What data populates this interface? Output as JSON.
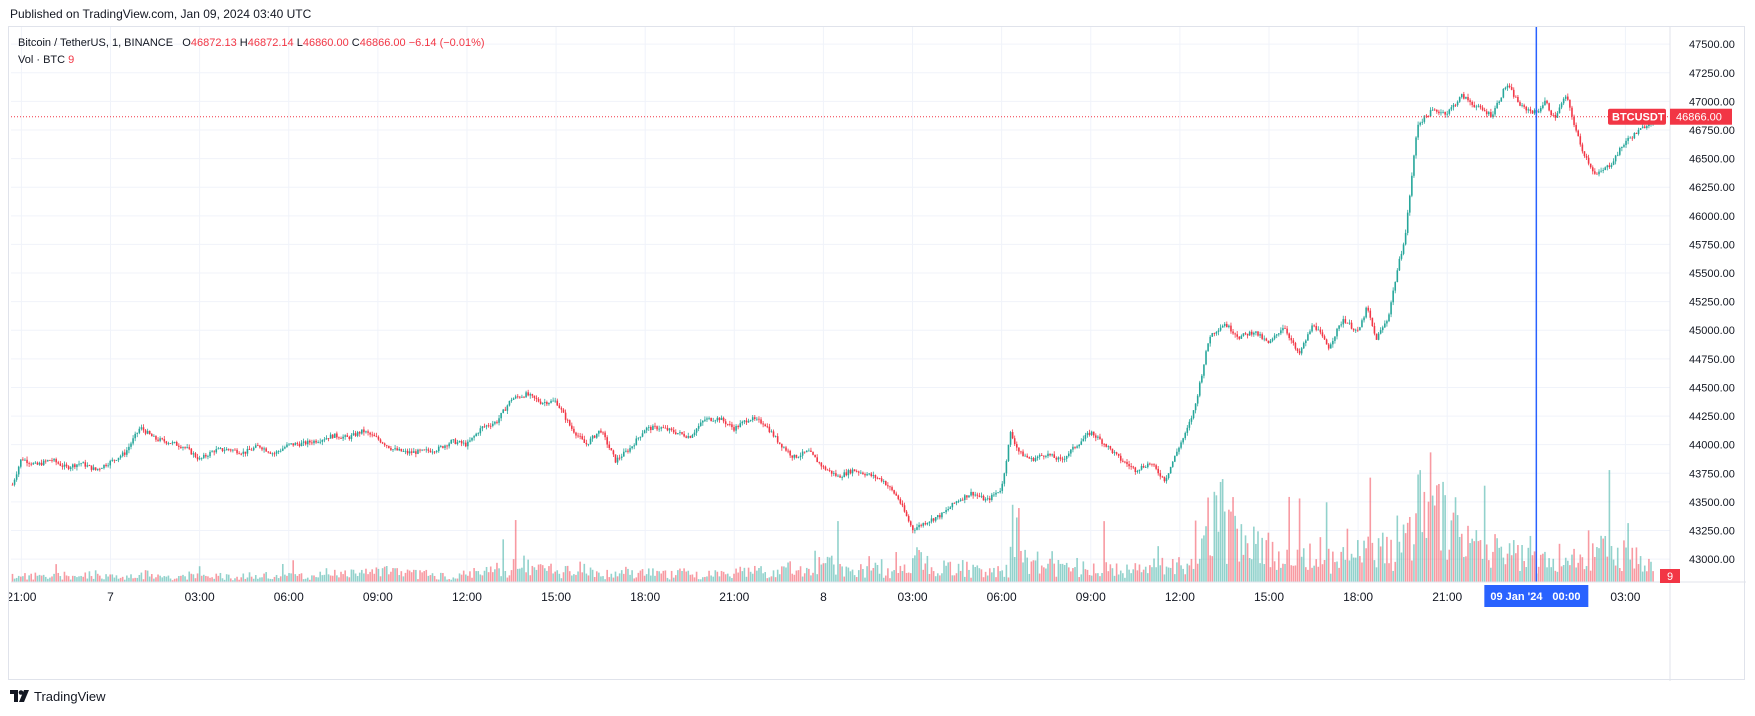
{
  "header": {
    "published": "Published on TradingView.com, Jan 09, 2024 03:40 UTC"
  },
  "legend": {
    "symbol": "Bitcoin / TetherUS, 1, BINANCE",
    "o_label": "O",
    "o_value": "46872.13",
    "h_label": "H",
    "h_value": "46872.14",
    "l_label": "L",
    "l_value": "46860.00",
    "c_label": "C",
    "c_value": "46866.00",
    "change": "−6.14 (−0.01%)",
    "volume_label": "Vol · BTC",
    "volume_value": "9"
  },
  "colors": {
    "up": "#26a69a",
    "down": "#f23645",
    "crosshair": "#2962ff",
    "grid": "#f0f3fa"
  },
  "crosshair": {
    "time_label": "09 Jan '24",
    "time_value": "00:00"
  },
  "price_tag": {
    "symbol": "BTCUSDT",
    "price": "46866.00"
  },
  "volume_tag": "9",
  "footer": {
    "brand": "TradingView",
    "logo_icon": "tradingview-logo-icon"
  },
  "chart_data": {
    "type": "line",
    "title": "Bitcoin / TetherUS, 1, BINANCE",
    "interval": "1 minute candles",
    "y_ticks": [
      43000,
      43250,
      43500,
      43750,
      44000,
      44250,
      44500,
      44750,
      45000,
      45250,
      45500,
      45750,
      46000,
      46250,
      46500,
      46750,
      47000,
      47250,
      47500
    ],
    "y_tick_labels": [
      "43000.00",
      "43250.00",
      "43500.00",
      "43750.00",
      "44000.00",
      "44250.00",
      "44500.00",
      "44750.00",
      "45000.00",
      "45250.00",
      "45500.00",
      "45750.00",
      "46000.00",
      "46250.00",
      "46500.00",
      "46750.00",
      "47000.00",
      "47250.00",
      "47500.00"
    ],
    "ylim": [
      42800,
      47650
    ],
    "x_tick_labels": [
      "21:00",
      "7",
      "03:00",
      "06:00",
      "09:00",
      "12:00",
      "15:00",
      "18:00",
      "21:00",
      "8",
      "03:00",
      "06:00",
      "09:00",
      "12:00",
      "15:00",
      "18:00",
      "21:00",
      "03:00"
    ],
    "x_tick_hours": [
      0,
      3,
      6,
      9,
      12,
      15,
      18,
      21,
      24,
      27,
      30,
      33,
      36,
      39,
      42,
      45,
      48,
      54
    ],
    "xlim_hours": [
      -0.35,
      55.5
    ],
    "series": [
      {
        "name": "BTCUSDT",
        "x_hours": [
          -0.3,
          0,
          0.5,
          1,
          1.5,
          2,
          2.5,
          3,
          3.5,
          4,
          4.5,
          5,
          5.5,
          6,
          6.5,
          7,
          7.5,
          8,
          8.5,
          9,
          9.5,
          10,
          10.5,
          11,
          11.5,
          12,
          12.5,
          13,
          13.5,
          14,
          14.5,
          15,
          15.5,
          16,
          16.5,
          17,
          17.5,
          18,
          18.5,
          19,
          19.5,
          20,
          20.5,
          21,
          21.5,
          22,
          22.5,
          23,
          23.5,
          24,
          24.5,
          25,
          25.5,
          26,
          26.5,
          27,
          27.5,
          28,
          28.5,
          29,
          29.5,
          30,
          30.5,
          31,
          31.5,
          32,
          32.5,
          33,
          33.3,
          33.6,
          34,
          34.5,
          35,
          35.5,
          36,
          36.5,
          37,
          37.5,
          38,
          38.5,
          39,
          39.2,
          39.5,
          40,
          40.5,
          41,
          41.5,
          42,
          42.5,
          43,
          43.5,
          44,
          44.5,
          45,
          45.3,
          45.6,
          46,
          46.3,
          46.6,
          47,
          47.5,
          48,
          48.5,
          49,
          49.5,
          50,
          50.5,
          51,
          51.3,
          51.6,
          52,
          52.5,
          53,
          53.5,
          54,
          54.5,
          55
        ],
        "close": [
          43650,
          43880,
          43820,
          43870,
          43800,
          43840,
          43780,
          43850,
          43930,
          44150,
          44050,
          44020,
          43980,
          43870,
          43950,
          43960,
          43930,
          43990,
          43920,
          44000,
          44010,
          44040,
          44080,
          44060,
          44120,
          44050,
          43960,
          43930,
          43940,
          43960,
          44030,
          44000,
          44150,
          44200,
          44400,
          44440,
          44370,
          44380,
          44150,
          44000,
          44130,
          43860,
          43970,
          44140,
          44150,
          44110,
          44070,
          44220,
          44230,
          44140,
          44230,
          44190,
          44020,
          43890,
          43940,
          43800,
          43720,
          43780,
          43740,
          43690,
          43540,
          43260,
          43330,
          43390,
          43510,
          43580,
          43510,
          43620,
          44100,
          43930,
          43870,
          43920,
          43860,
          43990,
          44110,
          44000,
          43870,
          43780,
          43840,
          43690,
          44000,
          44100,
          44320,
          44950,
          45060,
          44940,
          44990,
          44880,
          45040,
          44780,
          45060,
          44850,
          45100,
          44980,
          45200,
          44920,
          45100,
          45500,
          45850,
          46800,
          46920,
          46900,
          47050,
          46950,
          46880,
          47150,
          46950,
          46900,
          47000,
          46850,
          47050,
          46600,
          46350,
          46450,
          46650,
          46750,
          46866
        ],
        "high_hint": [
          47210,
          47170,
          47100
        ],
        "low_hint": [
          43180,
          43660,
          44390
        ]
      },
      {
        "name": "Vol · BTC",
        "relative_level": [
          0.05,
          0.06,
          0.05,
          0.06,
          0.05,
          0.07,
          0.06,
          0.05,
          0.06,
          0.07,
          0.06,
          0.05,
          0.06,
          0.05,
          0.06,
          0.05,
          0.06,
          0.07,
          0.05,
          0.06,
          0.05,
          0.06,
          0.07,
          0.08,
          0.09,
          0.1,
          0.09,
          0.08,
          0.07,
          0.06,
          0.07,
          0.08,
          0.1,
          0.12,
          0.18,
          0.16,
          0.12,
          0.1,
          0.11,
          0.09,
          0.08,
          0.09,
          0.07,
          0.08,
          0.07,
          0.08,
          0.06,
          0.07,
          0.08,
          0.09,
          0.1,
          0.08,
          0.12,
          0.14,
          0.18,
          0.16,
          0.14,
          0.12,
          0.15,
          0.1,
          0.12,
          0.2,
          0.16,
          0.14,
          0.12,
          0.1,
          0.1,
          0.12,
          0.55,
          0.2,
          0.18,
          0.14,
          0.12,
          0.14,
          0.16,
          0.12,
          0.1,
          0.12,
          0.14,
          0.15,
          0.22,
          0.3,
          0.4,
          0.6,
          0.45,
          0.35,
          0.3,
          0.28,
          0.25,
          0.22,
          0.26,
          0.22,
          0.24,
          0.26,
          0.45,
          0.3,
          0.28,
          0.4,
          0.55,
          0.85,
          0.6,
          0.5,
          0.35,
          0.3,
          0.28,
          0.25,
          0.26,
          0.2,
          0.18,
          0.22,
          0.24,
          0.3,
          0.35,
          0.28,
          0.22,
          0.15,
          0.12
        ]
      }
    ],
    "grid": true,
    "crosshair_x_hours": 51
  }
}
